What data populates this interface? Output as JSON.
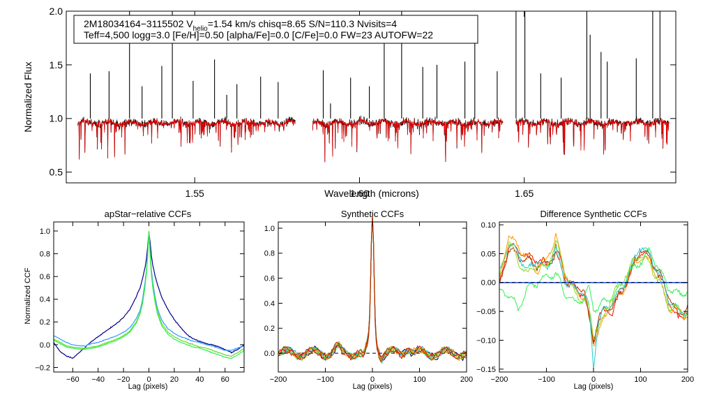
{
  "chart_data": [
    {
      "id": "spectrum",
      "type": "line",
      "xlabel": "Wavelength (microns)",
      "ylabel": "Normalized Flux",
      "xlim": [
        1.511,
        1.696
      ],
      "ylim": [
        0.4,
        2.0
      ],
      "xticks": [
        1.55,
        1.6,
        1.65
      ],
      "xtick_labels": [
        "1.55",
        "1.60",
        "1.65"
      ],
      "yticks": [
        0.5,
        1.0,
        1.5,
        2.0
      ],
      "ytick_labels": [
        "0.5",
        "1.0",
        "1.5",
        "2.0"
      ],
      "info_box": {
        "line1_a": "2M18034164−3115502  V",
        "line1_sub": "helio",
        "line1_b": "=1.54 km/s  chisq=8.65  S/N=110.3  Nvisits=4",
        "line2": "Teff=4,500 logg=3.0 [Fe/H]=0.50 [alpha/Fe]=0.0 [C/Fe]=0.0 FW=23 AUTOFW=22"
      },
      "chips": [
        [
          1.5145,
          1.5805
        ],
        [
          1.5858,
          1.6435
        ],
        [
          1.6475,
          1.694
        ]
      ],
      "series": [
        {
          "name": "observed",
          "color": "#000000"
        },
        {
          "name": "model",
          "color": "#e00000"
        }
      ],
      "sky_lines": [
        [
          1.5183,
          1.42
        ],
        [
          1.524,
          1.44
        ],
        [
          1.5302,
          2.0
        ],
        [
          1.534,
          1.3
        ],
        [
          1.54,
          1.49
        ],
        [
          1.5432,
          2.0
        ],
        [
          1.5495,
          1.35
        ],
        [
          1.556,
          1.55
        ],
        [
          1.5597,
          1.22
        ],
        [
          1.5628,
          1.32
        ],
        [
          1.57,
          1.39
        ],
        [
          1.5753,
          1.34
        ],
        [
          1.589,
          1.45
        ],
        [
          1.5912,
          1.14
        ],
        [
          1.5973,
          1.38
        ],
        [
          1.603,
          1.3
        ],
        [
          1.6075,
          1.71
        ],
        [
          1.6128,
          2.0
        ],
        [
          1.6192,
          1.48
        ],
        [
          1.6235,
          1.5
        ],
        [
          1.632,
          1.53
        ],
        [
          1.635,
          1.88
        ],
        [
          1.6418,
          1.44
        ],
        [
          1.6475,
          2.0
        ],
        [
          1.6502,
          2.0
        ],
        [
          1.655,
          1.42
        ],
        [
          1.6612,
          1.38
        ],
        [
          1.669,
          2.0
        ],
        [
          1.67,
          1.78
        ],
        [
          1.6733,
          1.62
        ],
        [
          1.6752,
          1.53
        ],
        [
          1.684,
          1.56
        ],
        [
          1.689,
          2.0
        ],
        [
          1.6912,
          2.0
        ]
      ]
    },
    {
      "id": "apstar_ccf",
      "type": "line",
      "title": "apStar−relative CCFs",
      "xlabel": "Lag (pixels)",
      "ylabel": "Normalized CCF",
      "xlim": [
        -75,
        75
      ],
      "ylim": [
        -0.24,
        1.08
      ],
      "xticks": [
        -60,
        -40,
        -20,
        0,
        20,
        40,
        60
      ],
      "xtick_labels": [
        "−60",
        "−40",
        "−20",
        "0",
        "20",
        "40",
        "60"
      ],
      "yticks": [
        -0.2,
        0.0,
        0.2,
        0.4,
        0.6,
        0.8,
        1.0
      ],
      "ytick_labels": [
        "−0.2",
        "0.0",
        "0.2",
        "0.4",
        "0.6",
        "0.8",
        "1.0"
      ],
      "series": [
        {
          "name": "navy",
          "color": "#00008b",
          "x": [
            -75,
            -70,
            -65,
            -60,
            -55,
            -50,
            -45,
            -40,
            -35,
            -30,
            -25,
            -20,
            -15,
            -10,
            -7,
            -5,
            -3,
            -2,
            -1,
            0,
            1,
            2,
            3,
            5,
            7,
            10,
            15,
            20,
            25,
            30,
            35,
            40,
            45,
            50,
            55,
            60,
            65,
            70,
            75
          ],
          "y": [
            0.02,
            -0.06,
            -0.1,
            -0.12,
            -0.07,
            -0.02,
            0.03,
            0.07,
            0.11,
            0.15,
            0.19,
            0.24,
            0.31,
            0.42,
            0.5,
            0.58,
            0.68,
            0.75,
            0.86,
            0.99,
            0.9,
            0.78,
            0.7,
            0.6,
            0.52,
            0.42,
            0.31,
            0.22,
            0.15,
            0.09,
            0.05,
            0.03,
            0.01,
            0.0,
            -0.02,
            -0.04,
            -0.07,
            -0.04,
            0.0
          ]
        },
        {
          "name": "blue",
          "color": "#3399ff",
          "x": [
            -75,
            -70,
            -65,
            -60,
            -55,
            -50,
            -45,
            -40,
            -35,
            -30,
            -25,
            -20,
            -15,
            -10,
            -7,
            -5,
            -3,
            -2,
            -1,
            0,
            1,
            2,
            3,
            5,
            7,
            10,
            15,
            20,
            25,
            30,
            35,
            40,
            45,
            50,
            55,
            60,
            65,
            70,
            75
          ],
          "y": [
            0.08,
            0.05,
            0.02,
            0.0,
            -0.01,
            -0.01,
            0.01,
            0.02,
            0.04,
            0.06,
            0.08,
            0.11,
            0.15,
            0.23,
            0.3,
            0.4,
            0.55,
            0.65,
            0.8,
            0.99,
            0.82,
            0.66,
            0.55,
            0.41,
            0.31,
            0.22,
            0.14,
            0.1,
            0.07,
            0.05,
            0.03,
            0.02,
            0.0,
            -0.01,
            -0.03,
            -0.05,
            -0.05,
            -0.03,
            -0.01
          ]
        },
        {
          "name": "lime",
          "color": "#66dd22",
          "x": [
            -75,
            -70,
            -65,
            -60,
            -55,
            -50,
            -45,
            -40,
            -35,
            -30,
            -25,
            -20,
            -15,
            -10,
            -7,
            -5,
            -3,
            -2,
            -1,
            0,
            1,
            2,
            3,
            5,
            7,
            10,
            15,
            20,
            25,
            30,
            35,
            40,
            45,
            50,
            55,
            60,
            65,
            70,
            75
          ],
          "y": [
            0.05,
            0.02,
            -0.01,
            -0.02,
            -0.03,
            -0.03,
            -0.02,
            -0.01,
            0.01,
            0.03,
            0.05,
            0.08,
            0.12,
            0.2,
            0.28,
            0.37,
            0.52,
            0.63,
            0.78,
            1.0,
            0.8,
            0.63,
            0.52,
            0.38,
            0.28,
            0.19,
            0.11,
            0.07,
            0.04,
            0.02,
            0.0,
            -0.02,
            -0.03,
            -0.05,
            -0.07,
            -0.09,
            -0.1,
            -0.07,
            -0.03
          ]
        },
        {
          "name": "green",
          "color": "#33ee55",
          "x": [
            -75,
            -70,
            -65,
            -60,
            -55,
            -50,
            -45,
            -40,
            -35,
            -30,
            -25,
            -20,
            -15,
            -10,
            -7,
            -5,
            -3,
            -2,
            -1,
            0,
            1,
            2,
            3,
            5,
            7,
            10,
            15,
            20,
            25,
            30,
            35,
            40,
            45,
            50,
            55,
            60,
            65,
            70,
            75
          ],
          "y": [
            0.04,
            0.01,
            -0.02,
            -0.03,
            -0.04,
            -0.04,
            -0.03,
            -0.02,
            0.0,
            0.02,
            0.04,
            0.07,
            0.11,
            0.19,
            0.27,
            0.36,
            0.51,
            0.62,
            0.77,
            0.98,
            0.78,
            0.61,
            0.5,
            0.36,
            0.26,
            0.17,
            0.09,
            0.05,
            0.02,
            0.0,
            -0.02,
            -0.03,
            -0.05,
            -0.07,
            -0.09,
            -0.11,
            -0.12,
            -0.09,
            -0.05
          ]
        }
      ]
    },
    {
      "id": "synthetic_ccf",
      "type": "line",
      "title": "Synthetic CCFs",
      "xlabel": "Lag (pixels)",
      "ylabel": "",
      "xlim": [
        -200,
        200
      ],
      "ylim": [
        -0.15,
        1.05
      ],
      "xticks": [
        -200,
        -100,
        0,
        100,
        200
      ],
      "xtick_labels": [
        "−200",
        "−100",
        "0",
        "100",
        "200"
      ],
      "yticks": [
        0.0,
        0.2,
        0.4,
        0.6,
        0.8,
        1.0
      ],
      "ytick_labels": [
        "0.0",
        "0.2",
        "0.4",
        "0.6",
        "0.8",
        "1.0"
      ],
      "zero_line": true,
      "series": [
        {
          "name": "navy",
          "color": "#00008b"
        },
        {
          "name": "blue",
          "color": "#3399ff"
        },
        {
          "name": "cyan",
          "color": "#22cccc"
        },
        {
          "name": "green",
          "color": "#33ee55"
        },
        {
          "name": "lime",
          "color": "#88dd22"
        },
        {
          "name": "orange",
          "color": "#ff9900"
        },
        {
          "name": "red",
          "color": "#ee1100"
        },
        {
          "name": "brown",
          "color": "#aa3300"
        }
      ]
    },
    {
      "id": "diff_ccf",
      "type": "line",
      "title": "Difference Synthetic CCFs",
      "xlabel": "Lag (pixels)",
      "ylabel": "",
      "xlim": [
        -200,
        200
      ],
      "ylim": [
        -0.155,
        0.105
      ],
      "xticks": [
        -200,
        -100,
        0,
        100,
        200
      ],
      "xtick_labels": [
        "−200",
        "−100",
        "0",
        "100",
        "200"
      ],
      "yticks": [
        -0.15,
        -0.1,
        -0.05,
        0.0,
        0.05,
        0.1
      ],
      "ytick_labels": [
        "−0.15",
        "−0.10",
        "−0.05",
        "0.00",
        "0.05",
        "0.10"
      ],
      "zero_line": true,
      "series": [
        {
          "name": "red",
          "color": "#ee1100",
          "x": [
            -200,
            -180,
            -160,
            -140,
            -120,
            -100,
            -80,
            -60,
            -40,
            -20,
            -10,
            0,
            10,
            20,
            40,
            60,
            80,
            100,
            120,
            140,
            160,
            180,
            200
          ],
          "y": [
            -0.005,
            0.065,
            0.055,
            0.045,
            0.04,
            0.03,
            0.06,
            0.015,
            -0.01,
            -0.02,
            -0.06,
            -0.1,
            -0.07,
            -0.05,
            -0.05,
            -0.01,
            0.015,
            0.055,
            0.04,
            0.02,
            -0.03,
            -0.065,
            -0.05
          ]
        },
        {
          "name": "orange",
          "color": "#ff9900",
          "x": [
            -200,
            -180,
            -160,
            -140,
            -120,
            -100,
            -80,
            -60,
            -40,
            -20,
            -10,
            0,
            10,
            20,
            40,
            60,
            80,
            100,
            120,
            140,
            160,
            180,
            200
          ],
          "y": [
            0.0,
            0.085,
            0.06,
            0.045,
            0.02,
            0.04,
            0.08,
            0.01,
            -0.015,
            -0.025,
            -0.05,
            -0.11,
            -0.08,
            -0.07,
            -0.03,
            -0.02,
            0.02,
            0.045,
            0.035,
            0.005,
            -0.045,
            -0.05,
            -0.06
          ]
        },
        {
          "name": "brown",
          "color": "#aa3300",
          "x": [
            -200,
            -180,
            -160,
            -140,
            -120,
            -100,
            -80,
            -60,
            -40,
            -20,
            -10,
            0,
            10,
            20,
            40,
            60,
            80,
            100,
            120,
            140,
            160,
            180,
            200
          ],
          "y": [
            -0.01,
            0.06,
            0.045,
            0.04,
            0.03,
            0.03,
            0.05,
            0.005,
            -0.01,
            -0.01,
            -0.06,
            -0.1,
            -0.06,
            -0.05,
            -0.04,
            -0.015,
            0.02,
            0.06,
            0.045,
            0.01,
            -0.02,
            -0.06,
            -0.04
          ]
        },
        {
          "name": "green",
          "color": "#33ee55",
          "x": [
            -200,
            -180,
            -160,
            -140,
            -120,
            -100,
            -80,
            -60,
            -40,
            -20,
            -10,
            0,
            10,
            20,
            40,
            60,
            80,
            100,
            120,
            140,
            160,
            180,
            200
          ],
          "y": [
            -0.015,
            -0.02,
            -0.045,
            -0.01,
            0.0,
            0.01,
            0.015,
            -0.02,
            -0.035,
            -0.025,
            -0.01,
            -0.04,
            -0.045,
            -0.035,
            -0.025,
            -0.005,
            0.02,
            0.035,
            0.055,
            0.02,
            -0.01,
            -0.02,
            -0.015
          ]
        },
        {
          "name": "cyan",
          "color": "#22cccc",
          "x": [
            -200,
            -180,
            -160,
            -140,
            -120,
            -100,
            -80,
            -60,
            -40,
            -20,
            -10,
            0,
            10,
            20,
            40,
            60,
            80,
            100,
            120,
            140,
            160,
            180,
            200
          ],
          "y": [
            0.015,
            0.07,
            0.05,
            0.02,
            0.04,
            0.02,
            0.06,
            0.0,
            -0.01,
            -0.02,
            -0.04,
            -0.145,
            -0.07,
            -0.05,
            -0.035,
            -0.01,
            0.025,
            0.065,
            0.045,
            0.015,
            -0.03,
            -0.05,
            -0.05
          ]
        },
        {
          "name": "lime",
          "color": "#88dd22",
          "x": [
            -200,
            -180,
            -160,
            -140,
            -120,
            -100,
            -80,
            -60,
            -40,
            -20,
            -10,
            0,
            10,
            20,
            40,
            60,
            80,
            100,
            120,
            140,
            160,
            180,
            200
          ],
          "y": [
            0.005,
            0.075,
            0.035,
            0.015,
            0.03,
            0.025,
            0.07,
            0.02,
            -0.02,
            -0.03,
            -0.045,
            -0.09,
            -0.075,
            -0.065,
            -0.02,
            0.0,
            0.03,
            0.05,
            0.03,
            0.0,
            -0.04,
            -0.045,
            -0.055
          ]
        },
        {
          "name": "navy",
          "color": "#00008b",
          "x": [
            -200,
            200
          ],
          "y": [
            0.0,
            0.0
          ]
        },
        {
          "name": "blue",
          "color": "#3366ff",
          "x": [
            -200,
            200
          ],
          "y": [
            0.0,
            0.0
          ]
        }
      ]
    }
  ]
}
